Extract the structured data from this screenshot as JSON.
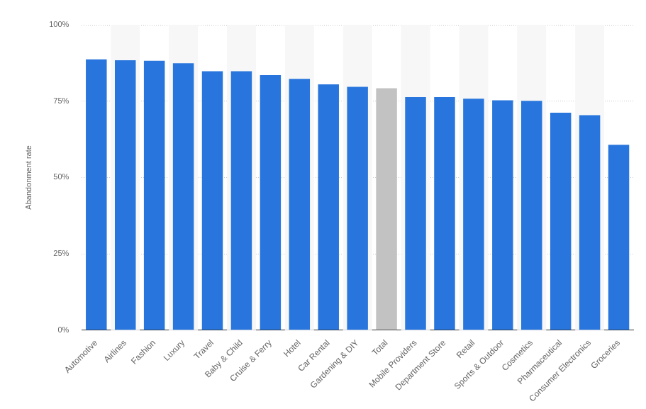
{
  "chart_data": {
    "type": "bar",
    "y_label": "Abandonment rate",
    "categories": [
      "Automotive",
      "Airlines",
      "Fashion",
      "Luxury",
      "Travel",
      "Baby & Child",
      "Cruise & Ferry",
      "Hotel",
      "Car Rental",
      "Gardening & DIY",
      "Total",
      "Mobile Providers",
      "Department Store",
      "Retail",
      "Sports & Outdoor",
      "Cosmetics",
      "Pharmaceutical",
      "Consumer Electronics",
      "Groceries"
    ],
    "values": [
      88.7,
      88.4,
      88.2,
      87.4,
      84.8,
      84.8,
      83.5,
      82.3,
      80.5,
      79.7,
      79.2,
      76.3,
      76.3,
      75.8,
      75.3,
      75.1,
      71.2,
      70.4,
      60.7
    ],
    "colors": [
      "#2876dd",
      "#2876dd",
      "#2876dd",
      "#2876dd",
      "#2876dd",
      "#2876dd",
      "#2876dd",
      "#2876dd",
      "#2876dd",
      "#2876dd",
      "#c2c2c2",
      "#2876dd",
      "#2876dd",
      "#2876dd",
      "#2876dd",
      "#2876dd",
      "#2876dd",
      "#2876dd",
      "#2876dd"
    ],
    "ylim": [
      0,
      100
    ],
    "yticks": [
      {
        "value": 0,
        "label": "0%"
      },
      {
        "value": 25,
        "label": "25%"
      },
      {
        "value": 50,
        "label": "50%"
      },
      {
        "value": 75,
        "label": "75%"
      },
      {
        "value": 100,
        "label": "100%"
      }
    ],
    "grid": true
  }
}
